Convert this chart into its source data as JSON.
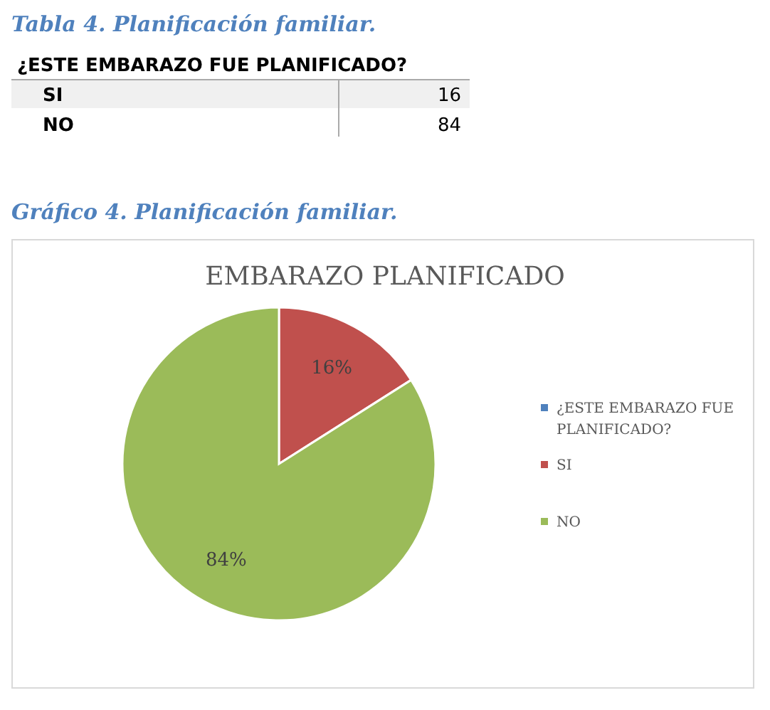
{
  "chart_data": {
    "type": "pie",
    "title": "EMBARAZO PLANIFICADO",
    "categories": [
      "¿ESTE EMBARAZO FUE PLANIFICADO?",
      "SI",
      "NO"
    ],
    "values": [
      0,
      16,
      84
    ],
    "colors": [
      "#4f81bd",
      "#c0504d",
      "#9bbb59"
    ],
    "value_labels": [
      null,
      "16%",
      "84%"
    ],
    "legend": "right",
    "annotations": [
      "Tabla 4. Planificación familiar.",
      "¿ESTE EMBARAZO FUE PLANIFICADO?",
      "SI",
      "16",
      "NO",
      "84",
      "Gráfico 4. Planificación familiar."
    ]
  }
}
